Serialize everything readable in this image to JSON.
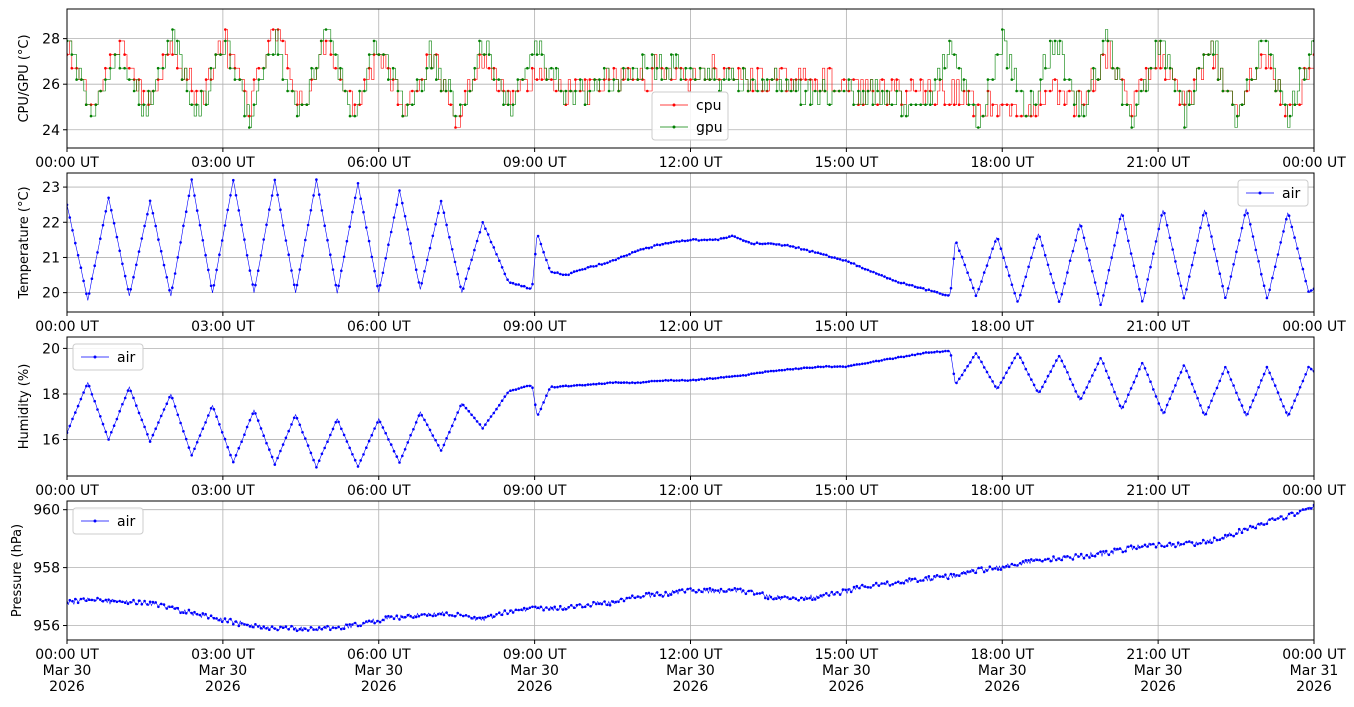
{
  "colors": {
    "cpu": "#ff0000",
    "gpu": "#008000",
    "air": "#0000ff"
  },
  "chart_data": [
    {
      "type": "line",
      "ylabel": "CPU/GPU (°C)",
      "ylim": [
        23.2,
        29.3
      ],
      "yticks": [
        24,
        26,
        28
      ],
      "xlim": [
        0,
        24
      ],
      "xticks": [
        0,
        3,
        6,
        9,
        12,
        15,
        18,
        21,
        24
      ],
      "xtick_labels": [
        "00:00 UT",
        "03:00 UT",
        "06:00 UT",
        "09:00 UT",
        "12:00 UT",
        "15:00 UT",
        "18:00 UT",
        "21:00 UT",
        "00:00 UT"
      ],
      "grid": true,
      "legend": "bottom-center",
      "levels": [
        24.1,
        24.6,
        25.1,
        25.7,
        26.2,
        26.7,
        27.3,
        27.9,
        28.4
      ],
      "series": [
        {
          "name": "cpu",
          "color": "#ff0000",
          "x": [
            0,
            0.5,
            1,
            1.5,
            2,
            2.5,
            3,
            3.5,
            4,
            4.5,
            5,
            5.5,
            6,
            6.5,
            7,
            7.5,
            8,
            8.5,
            9,
            9.5,
            10,
            10.5,
            11,
            11.5,
            12,
            12.5,
            13,
            13.5,
            14,
            14.5,
            15,
            15.5,
            16,
            16.5,
            17,
            17.5,
            18,
            18.5,
            19,
            19.5,
            20,
            20.5,
            21,
            21.5,
            22,
            22.5,
            23,
            23.5,
            24
          ],
          "y": [
            27.3,
            25.1,
            27.9,
            25.1,
            27.9,
            25.1,
            27.9,
            25.1,
            28.4,
            25.1,
            27.9,
            25.1,
            27.3,
            25.1,
            27.3,
            24.6,
            27.3,
            25.1,
            26.2,
            25.7,
            25.7,
            26.2,
            26.2,
            26.7,
            26.2,
            26.7,
            26.2,
            26.2,
            26.2,
            26.2,
            25.7,
            25.7,
            25.7,
            25.7,
            25.7,
            25.1,
            25.1,
            24.6,
            25.7,
            25.1,
            27.3,
            25.1,
            27.3,
            25.1,
            27.3,
            24.6,
            27.3,
            24.6,
            27.3
          ]
        },
        {
          "name": "gpu",
          "color": "#008000",
          "x": [
            0,
            0.5,
            1,
            1.5,
            2,
            2.5,
            3,
            3.5,
            4,
            4.5,
            5,
            5.5,
            6,
            6.5,
            7,
            7.5,
            8,
            8.5,
            9,
            9.5,
            10,
            10.5,
            11,
            11.5,
            12,
            12.5,
            13,
            13.5,
            14,
            14.5,
            15,
            15.5,
            16,
            16.5,
            17,
            17.5,
            18,
            18.5,
            19,
            19.5,
            20,
            20.5,
            21,
            21.5,
            22,
            22.5,
            23,
            23.5,
            24
          ],
          "y": [
            27.9,
            24.6,
            27.3,
            24.6,
            28.4,
            24.6,
            27.9,
            24.6,
            27.9,
            24.6,
            28.4,
            24.6,
            27.9,
            24.6,
            27.3,
            24.6,
            27.9,
            24.6,
            27.9,
            25.7,
            25.7,
            26.2,
            26.7,
            26.7,
            26.7,
            26.2,
            26.2,
            26.2,
            25.7,
            25.7,
            25.7,
            25.7,
            25.1,
            24.6,
            27.9,
            24.1,
            27.9,
            24.6,
            27.9,
            24.6,
            27.9,
            24.1,
            27.9,
            24.6,
            27.9,
            24.6,
            27.9,
            24.6,
            27.9
          ]
        }
      ]
    },
    {
      "type": "line",
      "ylabel": "Temperature (°C)",
      "ylim": [
        19.45,
        23.4
      ],
      "yticks": [
        20,
        21,
        22,
        23
      ],
      "xlim": [
        0,
        24
      ],
      "xticks": [
        0,
        3,
        6,
        9,
        12,
        15,
        18,
        21,
        24
      ],
      "xtick_labels": [
        "00:00 UT",
        "03:00 UT",
        "06:00 UT",
        "09:00 UT",
        "12:00 UT",
        "15:00 UT",
        "18:00 UT",
        "21:00 UT",
        "00:00 UT"
      ],
      "grid": true,
      "legend": "top-right",
      "series": [
        {
          "name": "air",
          "color": "#0000ff",
          "x": [
            0,
            0.4,
            0.8,
            1.2,
            1.6,
            2.0,
            2.4,
            2.8,
            3.2,
            3.6,
            4.0,
            4.4,
            4.8,
            5.2,
            5.6,
            6.0,
            6.4,
            6.8,
            7.2,
            7.6,
            8.0,
            8.5,
            8.95,
            9.05,
            9.3,
            9.6,
            10,
            10.5,
            11,
            11.5,
            12,
            12.5,
            12.8,
            13.2,
            13.6,
            14,
            14.5,
            15,
            15.5,
            16,
            16.5,
            17,
            17.1,
            17.5,
            17.9,
            18.3,
            18.7,
            19.1,
            19.5,
            19.9,
            20.3,
            20.7,
            21.1,
            21.5,
            21.9,
            22.3,
            22.7,
            23.1,
            23.5,
            23.9,
            24
          ],
          "y": [
            22.5,
            19.8,
            22.7,
            19.9,
            22.6,
            19.9,
            23.2,
            20.0,
            23.2,
            20.0,
            23.2,
            20.0,
            23.2,
            20.0,
            23.1,
            20.0,
            22.9,
            20.1,
            22.6,
            20.0,
            22.0,
            20.3,
            20.1,
            21.7,
            20.6,
            20.5,
            20.7,
            20.9,
            21.2,
            21.4,
            21.5,
            21.5,
            21.6,
            21.4,
            21.4,
            21.3,
            21.1,
            20.9,
            20.6,
            20.3,
            20.1,
            19.9,
            21.5,
            19.9,
            21.6,
            19.7,
            21.7,
            19.7,
            22.0,
            19.6,
            22.3,
            19.7,
            22.4,
            19.8,
            22.4,
            19.8,
            22.4,
            19.8,
            22.3,
            20.0,
            20.1
          ]
        }
      ]
    },
    {
      "type": "line",
      "ylabel": "Humidity (%)",
      "ylim": [
        14.4,
        20.5
      ],
      "yticks": [
        16,
        18,
        20
      ],
      "xlim": [
        0,
        24
      ],
      "xticks": [
        0,
        3,
        6,
        9,
        12,
        15,
        18,
        21,
        24
      ],
      "xtick_labels": [
        "00:00 UT",
        "03:00 UT",
        "06:00 UT",
        "09:00 UT",
        "12:00 UT",
        "15:00 UT",
        "18:00 UT",
        "21:00 UT",
        "00:00 UT"
      ],
      "grid": true,
      "legend": "top-left",
      "series": [
        {
          "name": "air",
          "color": "#0000ff",
          "x": [
            0,
            0.4,
            0.8,
            1.2,
            1.6,
            2.0,
            2.4,
            2.8,
            3.2,
            3.6,
            4.0,
            4.4,
            4.8,
            5.2,
            5.6,
            6.0,
            6.4,
            6.8,
            7.2,
            7.6,
            8.0,
            8.5,
            8.95,
            9.05,
            9.3,
            10,
            10.5,
            11,
            11.5,
            12,
            12.5,
            13,
            13.5,
            14,
            14.5,
            15,
            15.5,
            16,
            16.5,
            17,
            17.1,
            17.5,
            17.9,
            18.3,
            18.7,
            19.1,
            19.5,
            19.9,
            20.3,
            20.7,
            21.1,
            21.5,
            21.9,
            22.3,
            22.7,
            23.1,
            23.5,
            23.9,
            24
          ],
          "y": [
            16.3,
            18.5,
            16.0,
            18.3,
            15.9,
            18.0,
            15.3,
            17.5,
            15.0,
            17.3,
            14.9,
            17.1,
            14.8,
            16.9,
            14.8,
            16.9,
            15.0,
            17.2,
            15.5,
            17.6,
            16.5,
            18.1,
            18.4,
            17.0,
            18.3,
            18.4,
            18.5,
            18.5,
            18.6,
            18.6,
            18.7,
            18.8,
            19.0,
            19.1,
            19.2,
            19.2,
            19.4,
            19.6,
            19.8,
            19.9,
            18.4,
            19.8,
            18.2,
            19.8,
            18.0,
            19.7,
            17.7,
            19.6,
            17.3,
            19.4,
            17.1,
            19.3,
            17.0,
            19.2,
            17.0,
            19.2,
            17.0,
            19.2,
            19.0
          ]
        }
      ]
    },
    {
      "type": "line",
      "ylabel": "Pressure (hPa)",
      "ylim": [
        955.5,
        960.3
      ],
      "yticks": [
        956,
        958,
        960
      ],
      "xlim": [
        0,
        24
      ],
      "xticks": [
        0,
        3,
        6,
        9,
        12,
        15,
        18,
        21,
        24
      ],
      "xtick_labels": [
        "00:00 UT\nMar 30\n2026",
        "03:00 UT\nMar 30\n2026",
        "06:00 UT\nMar 30\n2026",
        "09:00 UT\nMar 30\n2026",
        "12:00 UT\nMar 30\n2026",
        "15:00 UT\nMar 30\n2026",
        "18:00 UT\nMar 30\n2026",
        "21:00 UT\nMar 30\n2026",
        "00:00 UT\nMar 31\n2026"
      ],
      "grid": true,
      "legend": "top-left",
      "series": [
        {
          "name": "air",
          "color": "#0000ff",
          "x": [
            0,
            0.5,
            1,
            1.5,
            2,
            2.5,
            3,
            3.5,
            4,
            4.5,
            5,
            5.5,
            6,
            6.5,
            7,
            7.5,
            8,
            8.5,
            9,
            9.5,
            10,
            10.5,
            11,
            11.5,
            12,
            12.5,
            13,
            13.5,
            14,
            14.5,
            15,
            15.5,
            16,
            16.5,
            17,
            17.5,
            18,
            18.5,
            19,
            19.5,
            20,
            20.5,
            21,
            21.5,
            22,
            22.5,
            23,
            23.5,
            24
          ],
          "y": [
            956.8,
            956.9,
            956.8,
            956.8,
            956.6,
            956.4,
            956.2,
            956.0,
            955.9,
            955.9,
            955.9,
            956.0,
            956.2,
            956.3,
            956.4,
            956.4,
            956.2,
            956.5,
            956.6,
            956.6,
            956.7,
            956.8,
            957.0,
            957.1,
            957.2,
            957.2,
            957.2,
            957.0,
            956.9,
            957.0,
            957.2,
            957.4,
            957.5,
            957.6,
            957.7,
            957.9,
            958.0,
            958.2,
            958.3,
            958.4,
            958.5,
            958.7,
            958.8,
            958.8,
            958.9,
            959.2,
            959.5,
            959.8,
            960.1
          ]
        }
      ]
    }
  ]
}
